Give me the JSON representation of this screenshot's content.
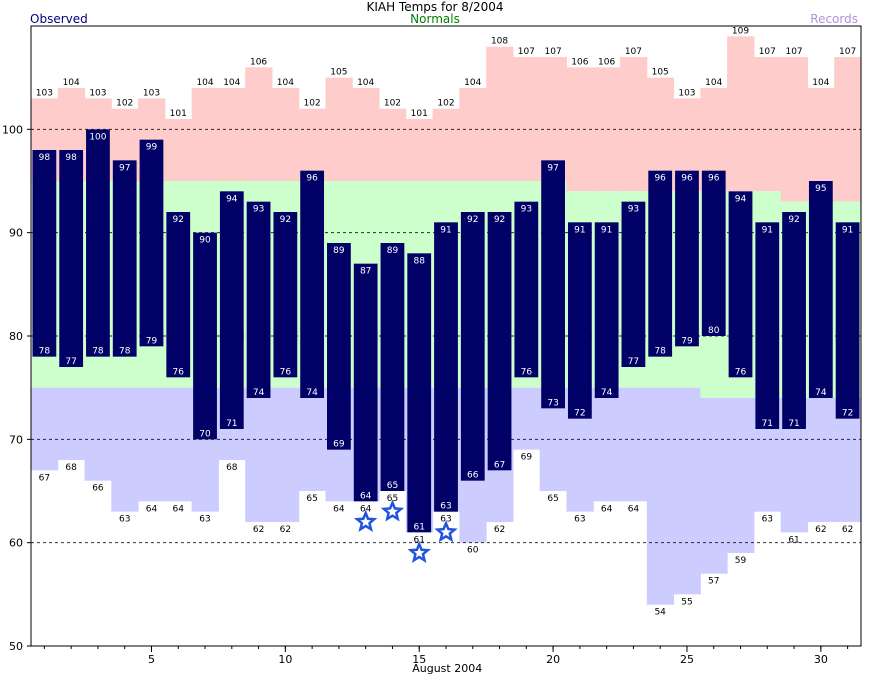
{
  "header": {
    "title": "KIAH Temps for 8/2004",
    "legend_observed": "Observed",
    "legend_normals": "Normals",
    "legend_records": "Records"
  },
  "colors": {
    "observed": "#000066",
    "record_band": "#ffcccc",
    "normal_band": "#ccffcc",
    "record_low_band": "#ccccff",
    "record_star": "#2255dd",
    "gridline": "#000000"
  },
  "chart_data": {
    "type": "bar",
    "title": "KIAH Temps for 8/2004",
    "xlabel": "August 2004",
    "ylabel": "",
    "ylim": [
      50,
      110
    ],
    "xlim": [
      0.5,
      31.5
    ],
    "yticks": [
      50,
      60,
      70,
      80,
      90,
      100
    ],
    "xticks": [
      5,
      10,
      15,
      20,
      25,
      30
    ],
    "grid": "dashed at 60, 70, 80, 90, 100",
    "days": [
      1,
      2,
      3,
      4,
      5,
      6,
      7,
      8,
      9,
      10,
      11,
      12,
      13,
      14,
      15,
      16,
      17,
      18,
      19,
      20,
      21,
      22,
      23,
      24,
      25,
      26,
      27,
      28,
      29,
      30,
      31
    ],
    "series": [
      {
        "name": "Observed",
        "role": "observed_high",
        "values": [
          98,
          98,
          100,
          97,
          99,
          92,
          90,
          94,
          93,
          92,
          96,
          89,
          87,
          89,
          88,
          91,
          92,
          92,
          93,
          97,
          91,
          91,
          93,
          96,
          96,
          96,
          94,
          91,
          92,
          95,
          91
        ]
      },
      {
        "name": "Observed",
        "role": "observed_low",
        "values": [
          78,
          77,
          78,
          78,
          79,
          76,
          70,
          71,
          74,
          76,
          74,
          69,
          64,
          65,
          61,
          63,
          66,
          67,
          76,
          73,
          72,
          74,
          77,
          78,
          79,
          80,
          76,
          71,
          71,
          74,
          72
        ]
      },
      {
        "name": "Records",
        "role": "record_high",
        "values": [
          103,
          104,
          103,
          102,
          103,
          101,
          104,
          104,
          106,
          104,
          102,
          105,
          104,
          102,
          101,
          102,
          104,
          108,
          107,
          107,
          106,
          106,
          107,
          105,
          103,
          104,
          109,
          107,
          107,
          104,
          107
        ]
      },
      {
        "name": "Records",
        "role": "record_low",
        "values": [
          67,
          68,
          66,
          63,
          64,
          64,
          63,
          68,
          62,
          62,
          65,
          64,
          64,
          65,
          61,
          63,
          60,
          62,
          69,
          65,
          63,
          64,
          64,
          54,
          55,
          57,
          59,
          63,
          61,
          62,
          62
        ]
      },
      {
        "name": "Normals",
        "role": "normal_high",
        "values": [
          95,
          95,
          95,
          95,
          95,
          95,
          95,
          95,
          95,
          95,
          95,
          95,
          95,
          95,
          95,
          95,
          95,
          95,
          95,
          95,
          94,
          94,
          94,
          94,
          94,
          94,
          94,
          94,
          93,
          93,
          93
        ]
      },
      {
        "name": "Normals",
        "role": "normal_low",
        "values": [
          75,
          75,
          75,
          75,
          75,
          75,
          75,
          75,
          75,
          75,
          75,
          75,
          75,
          75,
          75,
          75,
          75,
          75,
          75,
          75,
          75,
          75,
          75,
          75,
          75,
          74,
          74,
          74,
          74,
          74,
          74
        ]
      }
    ],
    "record_stars": [
      {
        "day": 13,
        "value": 62
      },
      {
        "day": 14,
        "value": 63
      },
      {
        "day": 15,
        "value": 59
      },
      {
        "day": 16,
        "value": 61
      }
    ]
  }
}
